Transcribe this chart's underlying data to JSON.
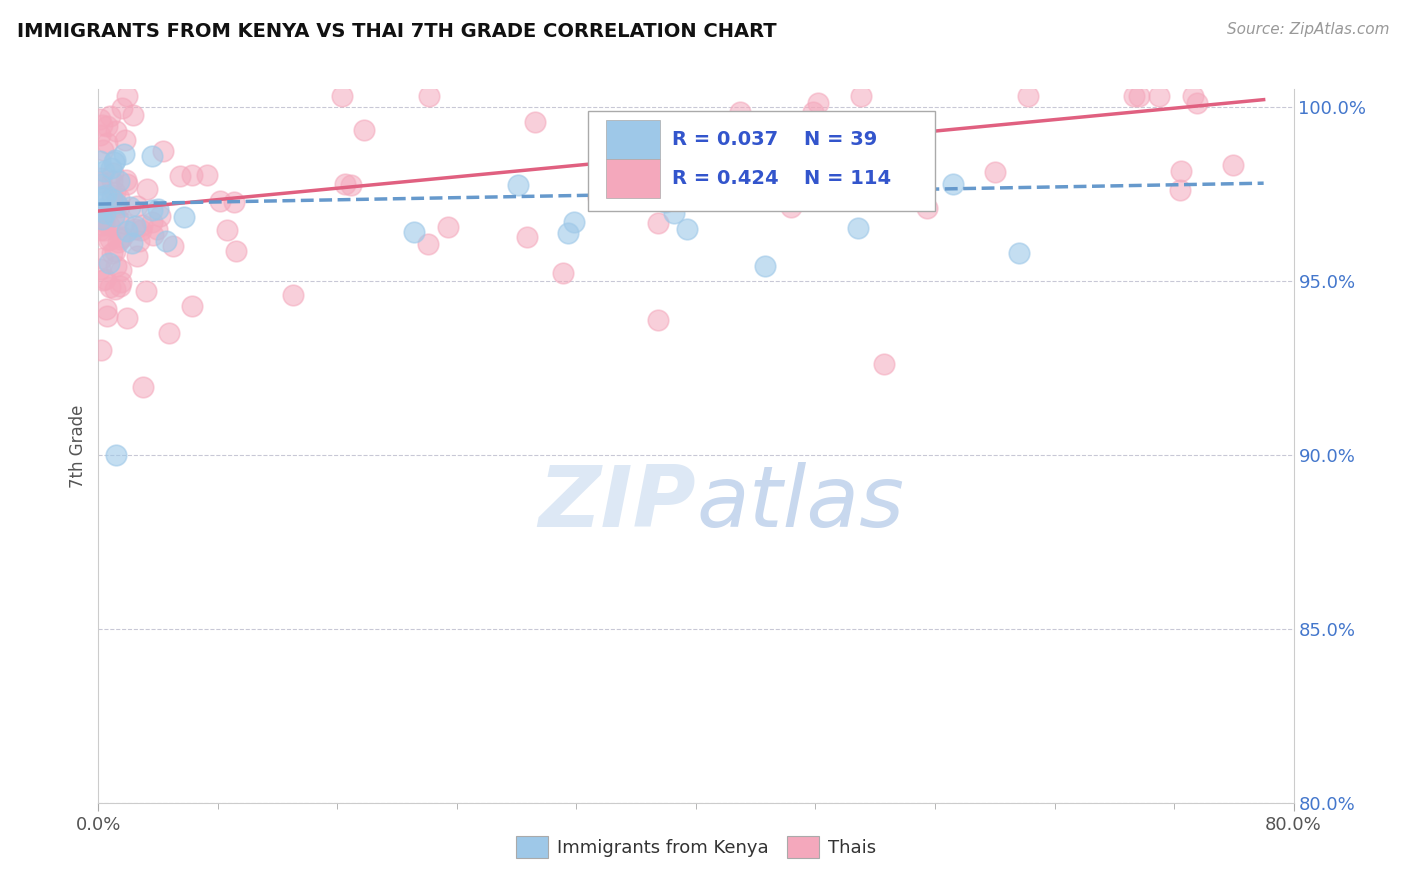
{
  "title": "IMMIGRANTS FROM KENYA VS THAI 7TH GRADE CORRELATION CHART",
  "source": "Source: ZipAtlas.com",
  "ylabel": "7th Grade",
  "xlim": [
    0.0,
    80.0
  ],
  "ylim": [
    80.0,
    100.5
  ],
  "xticks": [
    0.0,
    80.0
  ],
  "xticklabels": [
    "0.0%",
    "80.0%"
  ],
  "yticks": [
    80.0,
    85.0,
    90.0,
    95.0,
    100.0
  ],
  "yticklabels": [
    "80.0%",
    "85.0%",
    "90.0%",
    "95.0%",
    "100.0%"
  ],
  "kenya_color": "#9ec8e8",
  "thai_color": "#f4a8bc",
  "kenya_line_color": "#6699cc",
  "thai_line_color": "#e06080",
  "kenya_R": 0.037,
  "kenya_N": 39,
  "thai_R": 0.424,
  "thai_N": 114,
  "legend_color": "#3355cc",
  "ytick_color": "#4477cc",
  "xtick_color": "#555555",
  "background_color": "#ffffff",
  "grid_color": "#bbbbcc",
  "watermark_color": "#dde8f5",
  "title_color": "#111111",
  "source_color": "#999999",
  "ylabel_color": "#555555"
}
